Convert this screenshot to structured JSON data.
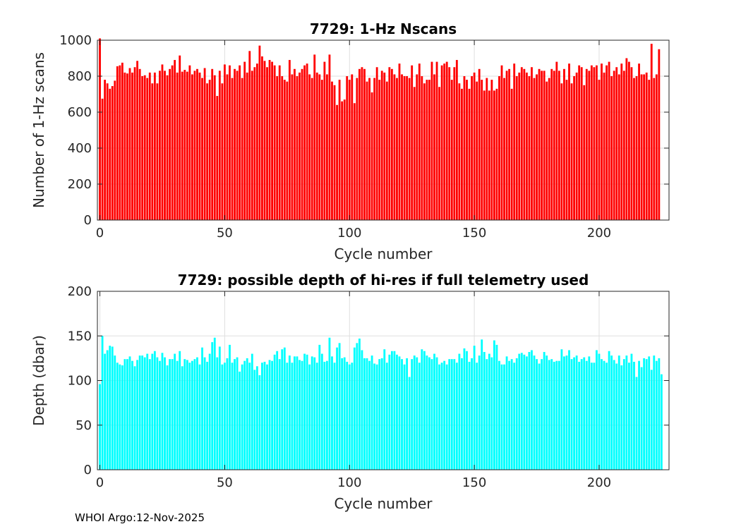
{
  "chart_data": [
    {
      "type": "bar",
      "title": "7729: 1-Hz Nscans",
      "xlabel": "Cycle number",
      "ylabel": "Number of 1-Hz scans",
      "color": "#ff0000",
      "xlim": [
        -1,
        228
      ],
      "ylim": [
        0,
        1000
      ],
      "xticks": [
        0,
        50,
        100,
        150,
        200
      ],
      "yticks": [
        0,
        200,
        400,
        600,
        800,
        1000
      ],
      "grid": true,
      "x_start": 0,
      "values": [
        1010,
        675,
        780,
        760,
        730,
        745,
        775,
        855,
        860,
        875,
        820,
        815,
        845,
        820,
        850,
        885,
        840,
        800,
        805,
        790,
        820,
        760,
        820,
        760,
        830,
        865,
        830,
        805,
        840,
        860,
        890,
        820,
        915,
        825,
        835,
        825,
        860,
        810,
        830,
        840,
        820,
        790,
        845,
        760,
        780,
        840,
        805,
        690,
        830,
        760,
        865,
        810,
        860,
        790,
        840,
        830,
        860,
        790,
        880,
        820,
        940,
        830,
        850,
        870,
        970,
        910,
        885,
        850,
        890,
        880,
        860,
        800,
        860,
        800,
        780,
        770,
        890,
        810,
        840,
        800,
        820,
        840,
        860,
        870,
        810,
        790,
        920,
        820,
        810,
        780,
        880,
        810,
        920,
        770,
        750,
        640,
        780,
        660,
        670,
        800,
        780,
        810,
        650,
        790,
        840,
        850,
        840,
        770,
        790,
        710,
        790,
        850,
        780,
        830,
        820,
        770,
        850,
        840,
        810,
        790,
        870,
        810,
        800,
        800,
        790,
        860,
        740,
        810,
        870,
        800,
        760,
        780,
        780,
        880,
        810,
        880,
        740,
        860,
        870,
        880,
        850,
        780,
        850,
        890,
        760,
        730,
        800,
        780,
        730,
        800,
        820,
        770,
        840,
        780,
        720,
        790,
        720,
        780,
        720,
        730,
        800,
        860,
        790,
        830,
        840,
        730,
        870,
        800,
        820,
        850,
        840,
        820,
        800,
        850,
        790,
        810,
        840,
        830,
        830,
        770,
        790,
        840,
        830,
        880,
        830,
        760,
        840,
        780,
        870,
        760,
        800,
        820,
        860,
        850,
        750,
        840,
        830,
        860,
        850,
        860,
        780,
        870,
        820,
        860,
        880,
        800,
        830,
        850,
        810,
        870,
        830,
        900,
        880,
        850,
        790,
        800,
        870,
        810,
        810,
        820,
        780,
        980,
        790,
        810,
        950
      ]
    },
    {
      "type": "bar",
      "title": "7729: possible depth of hi-res if full telemetry used",
      "xlabel": "Cycle number",
      "ylabel": "Depth (dbar)",
      "color": "#00ffff",
      "xlim": [
        -1,
        228
      ],
      "ylim": [
        0,
        200
      ],
      "xticks": [
        0,
        50,
        100,
        150,
        200
      ],
      "yticks": [
        0,
        50,
        100,
        150,
        200
      ],
      "grid": true,
      "x_start": 0,
      "values": [
        96,
        150,
        130,
        134,
        139,
        138,
        128,
        120,
        118,
        117,
        124,
        124,
        127,
        122,
        116,
        123,
        128,
        128,
        126,
        130,
        124,
        130,
        133,
        126,
        122,
        131,
        126,
        117,
        124,
        124,
        130,
        122,
        133,
        116,
        124,
        123,
        120,
        122,
        124,
        126,
        118,
        137,
        126,
        121,
        130,
        143,
        148,
        126,
        138,
        118,
        120,
        125,
        140,
        120,
        124,
        126,
        110,
        118,
        122,
        125,
        120,
        130,
        112,
        116,
        106,
        120,
        121,
        118,
        123,
        122,
        129,
        133,
        124,
        135,
        137,
        120,
        128,
        120,
        127,
        127,
        123,
        122,
        130,
        129,
        118,
        127,
        126,
        120,
        140,
        130,
        121,
        122,
        148,
        127,
        120,
        137,
        142,
        125,
        126,
        121,
        118,
        120,
        137,
        142,
        147,
        134,
        125,
        125,
        122,
        128,
        119,
        118,
        124,
        125,
        135,
        120,
        129,
        133,
        133,
        129,
        127,
        124,
        118,
        125,
        104,
        124,
        128,
        126,
        120,
        135,
        133,
        128,
        126,
        124,
        130,
        126,
        118,
        120,
        122,
        118,
        124,
        124,
        124,
        120,
        130,
        125,
        136,
        133,
        121,
        125,
        139,
        120,
        128,
        146,
        132,
        124,
        130,
        126,
        145,
        140,
        122,
        118,
        118,
        127,
        122,
        124,
        120,
        125,
        130,
        131,
        129,
        127,
        132,
        134,
        128,
        124,
        119,
        124,
        132,
        128,
        123,
        124,
        121,
        122,
        122,
        135,
        127,
        128,
        134,
        124,
        126,
        128,
        121,
        124,
        126,
        122,
        127,
        120,
        120,
        134,
        130,
        124,
        122,
        120,
        133,
        128,
        123,
        119,
        128,
        117,
        124,
        128,
        120,
        130,
        121,
        104,
        122,
        115,
        125,
        124,
        127,
        112,
        128,
        122,
        125,
        107
      ]
    }
  ],
  "footer": "WHOI Argo:12-Nov-2025"
}
